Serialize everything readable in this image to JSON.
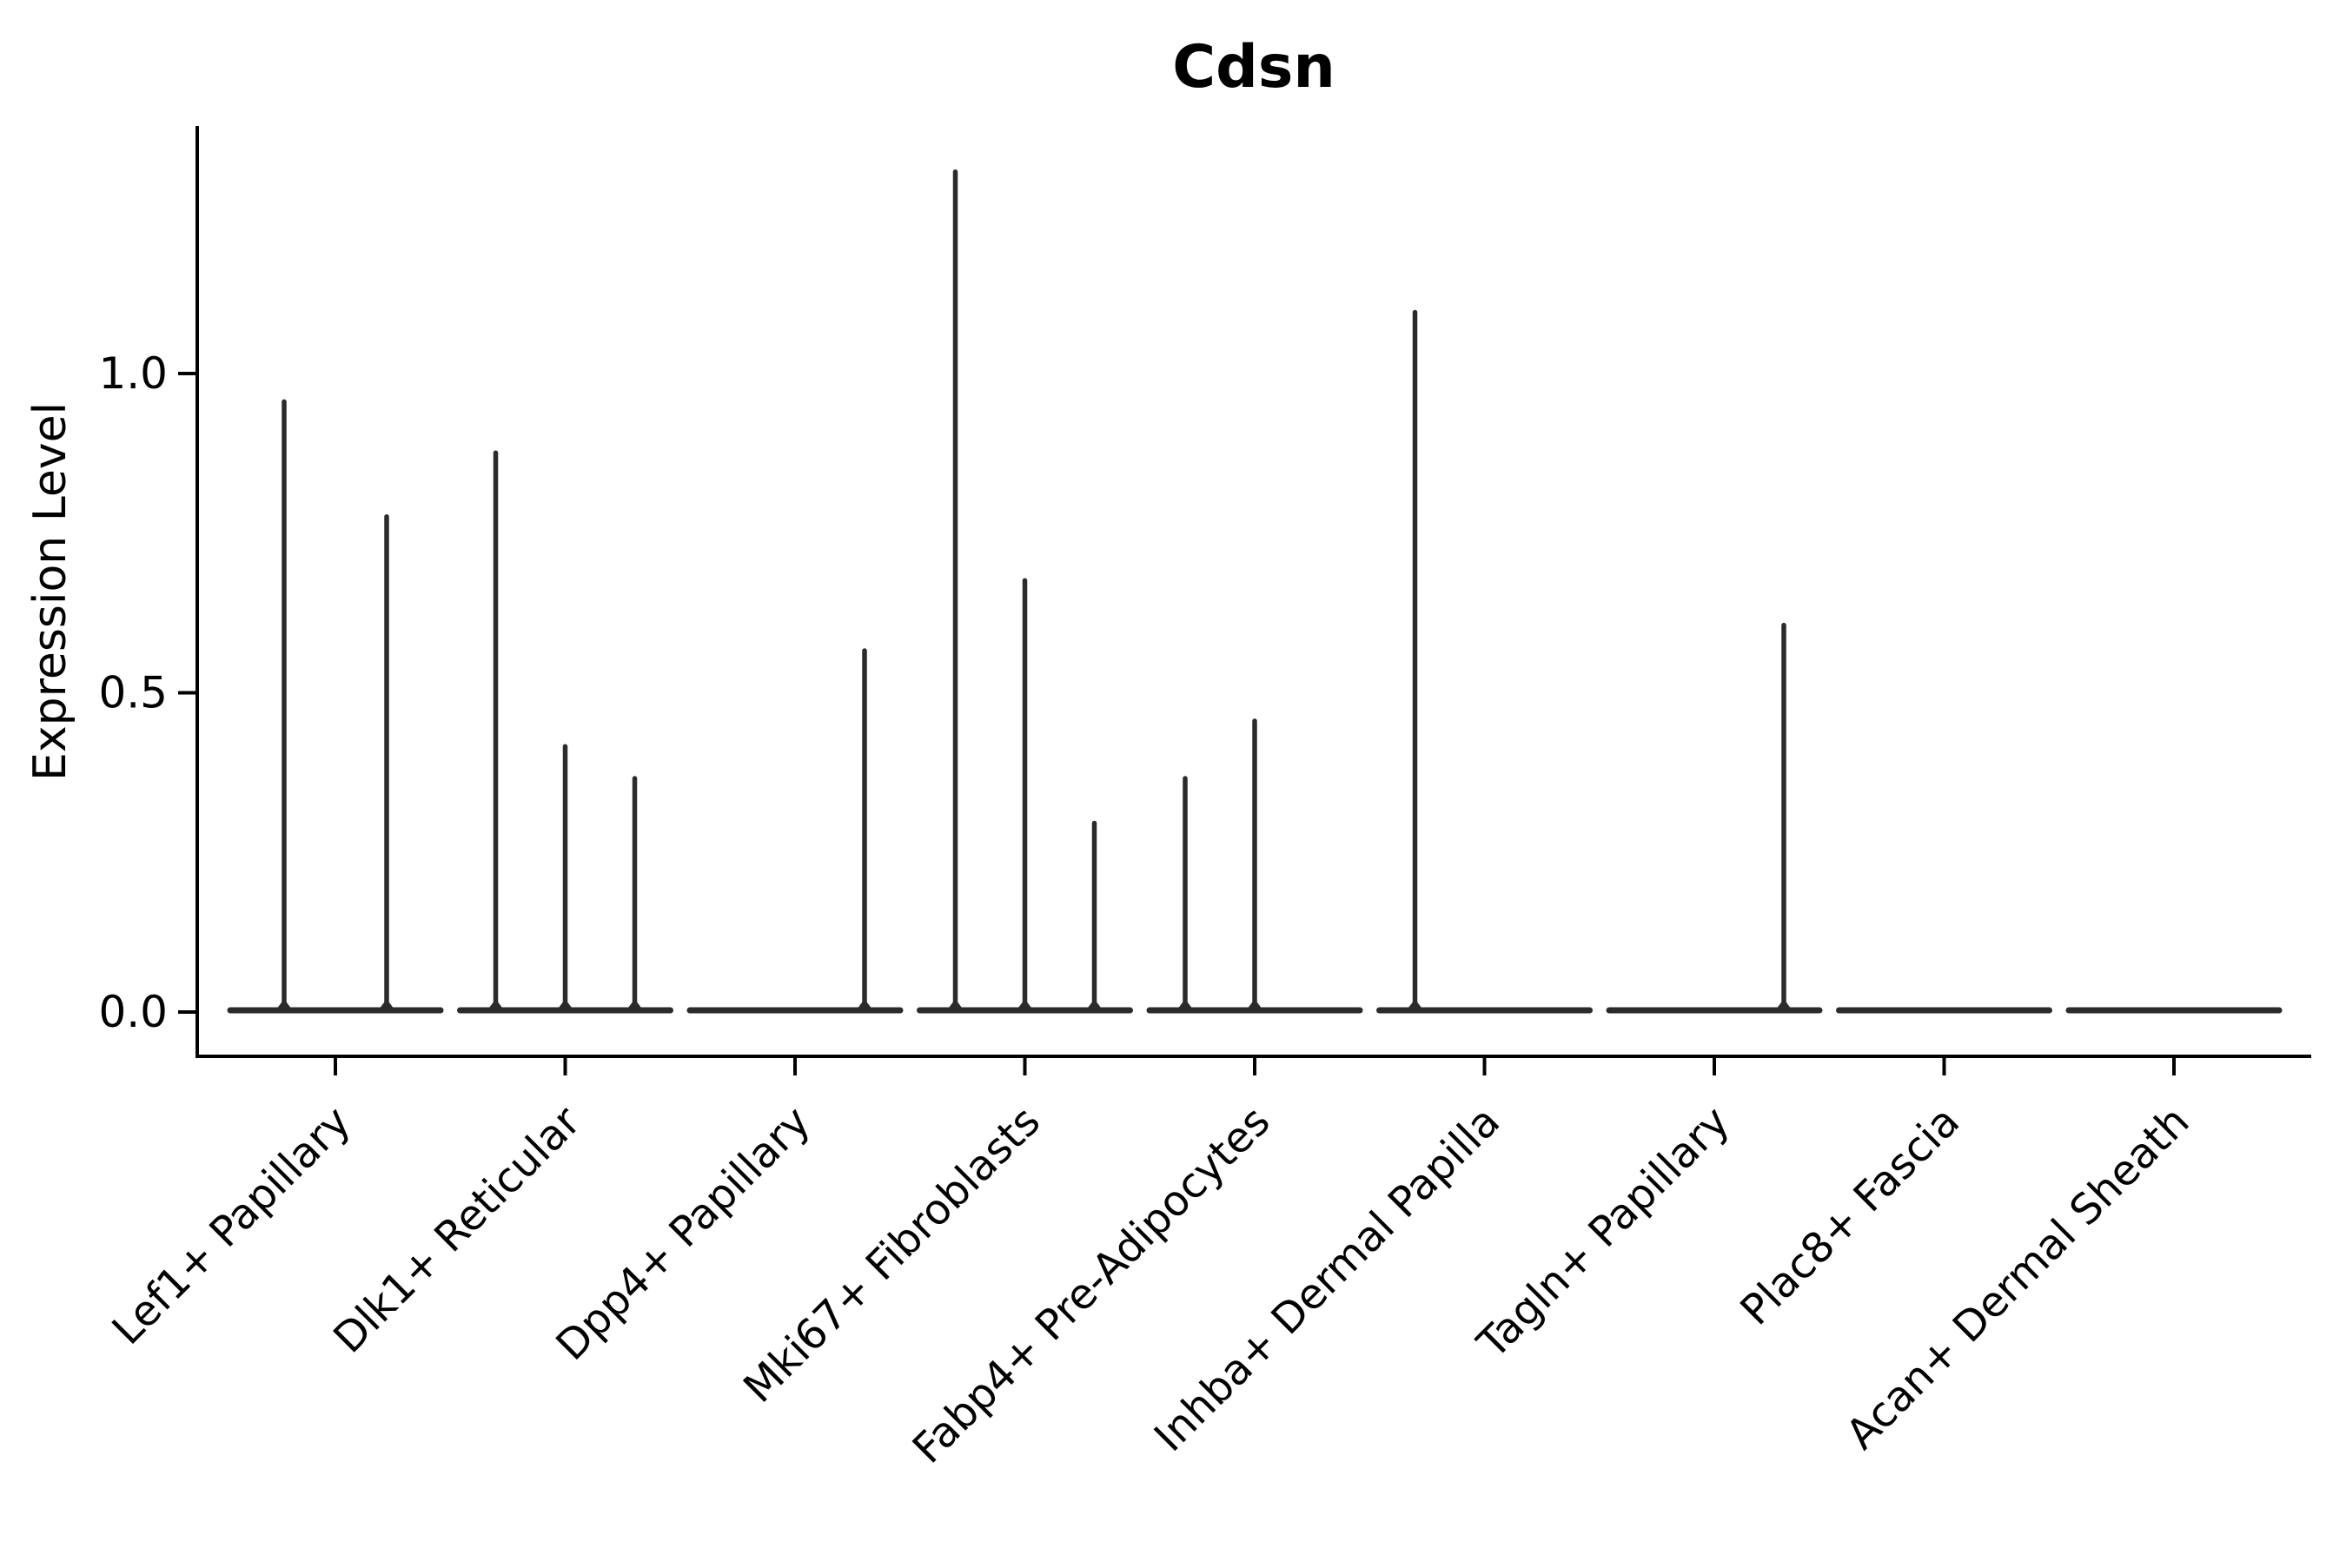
{
  "chart_data": {
    "type": "violin",
    "title": "Cdsn",
    "ylabel": "Expression Level",
    "xlabel": "",
    "grid": false,
    "legend": null,
    "background_color": "#ffffff",
    "axis_color": "#000000",
    "violin_color": "#2b2b2b",
    "ytick_labels": [
      "0.0",
      "0.5",
      "1.0"
    ],
    "ytick_values": [
      0.0,
      0.5,
      1.0
    ],
    "ylim": [
      -0.07,
      1.39
    ],
    "categories": [
      {
        "label": "Lef1+ Papillary",
        "spikes": [
          {
            "offset": -59,
            "peak": 0.96
          },
          {
            "offset": 59,
            "peak": 0.78
          }
        ]
      },
      {
        "label": "Dlk1+ Reticular",
        "spikes": [
          {
            "offset": -80,
            "peak": 0.88
          },
          {
            "offset": 0,
            "peak": 0.42
          },
          {
            "offset": 80,
            "peak": 0.37
          }
        ]
      },
      {
        "label": "Dpp4+ Papillary",
        "spikes": [
          {
            "offset": 80,
            "peak": 0.57
          }
        ]
      },
      {
        "label": "Mki67+ Fibroblasts",
        "spikes": [
          {
            "offset": -80,
            "peak": 1.32
          },
          {
            "offset": 0,
            "peak": 0.68
          },
          {
            "offset": 80,
            "peak": 0.3
          }
        ]
      },
      {
        "label": "Fabp4+ Pre-Adipocytes",
        "spikes": [
          {
            "offset": -80,
            "peak": 0.37
          },
          {
            "offset": 0,
            "peak": 0.46
          }
        ]
      },
      {
        "label": "Inhba+ Dermal Papilla",
        "spikes": [
          {
            "offset": -80,
            "peak": 1.1
          }
        ]
      },
      {
        "label": "Tagln+ Papillary",
        "spikes": [
          {
            "offset": 80,
            "peak": 0.61
          }
        ]
      },
      {
        "label": "Plac8+ Fascia",
        "spikes": []
      },
      {
        "label": "Acan+ Dermal Sheath",
        "spikes": []
      }
    ]
  }
}
